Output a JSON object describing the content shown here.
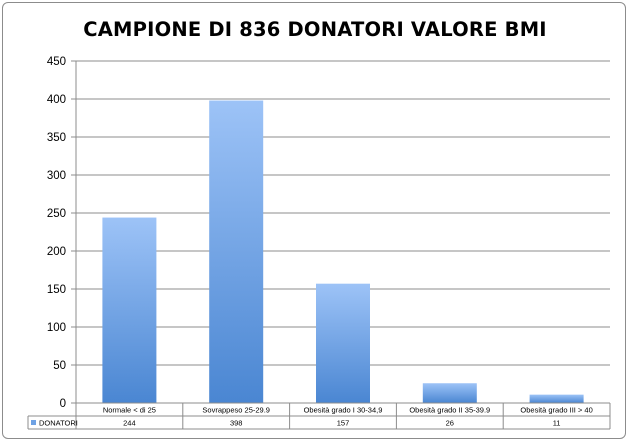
{
  "chart_data": {
    "type": "bar",
    "title": "CAMPIONE DI 836 DONATORI VALORE BMI",
    "categories": [
      "Normale < di 25",
      "Sovrappeso 25-29.9",
      "Obesità grado I 30-34,9",
      "Obesità grado II 35-39.9",
      "Obesità grado III  > 40"
    ],
    "series": [
      {
        "name": "DONATORI",
        "values": [
          244,
          398,
          157,
          26,
          11
        ],
        "value_labels": [
          "244",
          "398",
          "157",
          "26",
          "11"
        ]
      }
    ],
    "ylim": [
      0,
      450
    ],
    "yticks": [
      0,
      50,
      100,
      150,
      200,
      250,
      300,
      350,
      400,
      450
    ],
    "ytick_labels": [
      "0",
      "50",
      "100",
      "150",
      "200",
      "250",
      "300",
      "350",
      "400",
      "450"
    ],
    "grid": true,
    "legend": "data-table",
    "colors": {
      "bar_top": "#9dc3f7",
      "bar_bottom": "#4a86d2",
      "grid": "#8c8c8c",
      "axis": "#8c8c8c",
      "legend_key": "#6fa2e4"
    }
  }
}
